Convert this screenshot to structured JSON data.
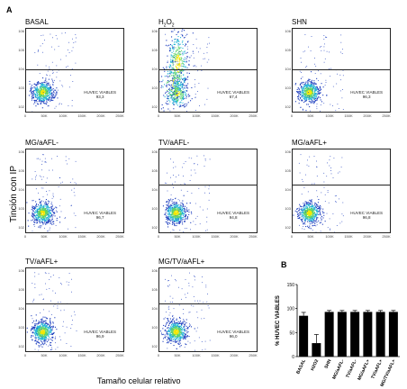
{
  "figure_labels": {
    "panel_a": "A",
    "panel_b": "B"
  },
  "axis_titles": {
    "y": "Tinción con IP",
    "x": "Tamaño celular relativo"
  },
  "flow_y_ticks": [
    "10^6",
    "10^5",
    "10^4",
    "10^3",
    "10^2"
  ],
  "flow_x_ticks": [
    "0",
    "50K",
    "100K",
    "150K",
    "200K",
    "250K"
  ],
  "gate_label": "HUVEC VIABLES",
  "flow_panels": [
    {
      "title": "BASAL",
      "value": "93,3"
    },
    {
      "title": "H2O2",
      "value": "67,4"
    },
    {
      "title": "SHN",
      "value": "96,3"
    },
    {
      "title": "MG/aAFL-",
      "value": "96,7"
    },
    {
      "title": "TV/aAFL-",
      "value": "94,8"
    },
    {
      "title": "MG/aAFL+",
      "value": "96,8"
    },
    {
      "title": "TV/aAFL+",
      "value": "96,9"
    },
    {
      "title": "MG/TV/aAFL+",
      "value": "96,0"
    }
  ],
  "colors": {
    "density_low": "#1f3fbf",
    "density_mid": "#27b6d6",
    "density_high": "#f2e600",
    "bar": "#000000"
  },
  "chart_data": {
    "type": "bar",
    "ylabel": "% HUVEC VIABLES",
    "categories": [
      "BASAL",
      "H2O2",
      "SHN",
      "MG/aAFL-",
      "TV/aAFL-",
      "MG/aAFL+",
      "TV/aAFL+",
      "MG/TV/aAFL+"
    ],
    "values": [
      85,
      28,
      93,
      93,
      93,
      93,
      93,
      93
    ],
    "errors": [
      7,
      18,
      3,
      3,
      3,
      3,
      3,
      3
    ],
    "ylim": [
      0,
      150
    ],
    "yticks": [
      "0",
      "50",
      "100",
      "150"
    ]
  }
}
